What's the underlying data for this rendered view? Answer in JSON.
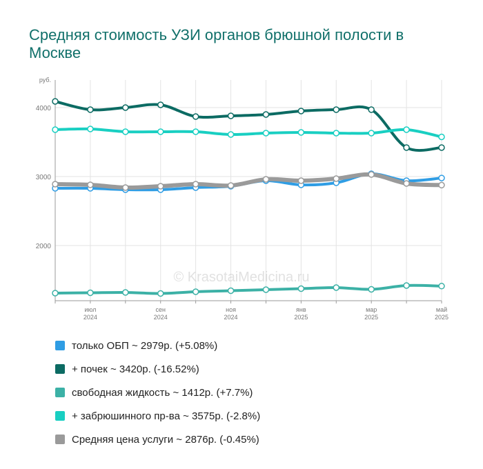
{
  "title": "Средняя стоимость УЗИ органов брюшной полости в Москве",
  "watermark": "© KrasotaiMedicina.ru",
  "chart_data": {
    "type": "line",
    "ylabel": "руб.",
    "ylim": [
      1200,
      4400
    ],
    "yticks": [
      2000,
      3000,
      4000
    ],
    "xlim": [
      0,
      11
    ],
    "x_tick_labels": [
      {
        "x": 1,
        "lines": [
          "июл",
          "2024"
        ]
      },
      {
        "x": 3,
        "lines": [
          "сен",
          "2024"
        ]
      },
      {
        "x": 5,
        "lines": [
          "ноя",
          "2024"
        ]
      },
      {
        "x": 7,
        "lines": [
          "янв",
          "2025"
        ]
      },
      {
        "x": 9,
        "lines": [
          "мар",
          "2025"
        ]
      },
      {
        "x": 11,
        "lines": [
          "май",
          "2025"
        ]
      }
    ],
    "grid": true,
    "legend_position": "bottom",
    "series": [
      {
        "name": "только ОБП",
        "color": "#2f9de4",
        "width": 4,
        "values": [
          2830,
          2830,
          2810,
          2810,
          2840,
          2860,
          2940,
          2880,
          2910,
          3040,
          2940,
          2979
        ]
      },
      {
        "name": "+ почек",
        "color": "#0c6b63",
        "width": 4,
        "values": [
          4090,
          3970,
          4000,
          4040,
          3870,
          3880,
          3900,
          3950,
          3970,
          3970,
          3420,
          3420
        ]
      },
      {
        "name": "свободная жидкость",
        "color": "#3cb1a6",
        "width": 4,
        "values": [
          1310,
          1315,
          1320,
          1305,
          1330,
          1345,
          1360,
          1375,
          1390,
          1365,
          1420,
          1412
        ]
      },
      {
        "name": "+ забрюшинного пр-ва",
        "color": "#19cfc2",
        "width": 4,
        "values": [
          3680,
          3690,
          3650,
          3650,
          3650,
          3610,
          3630,
          3640,
          3630,
          3630,
          3680,
          3575
        ]
      },
      {
        "name": "Средняя цена услуги",
        "color": "#9a9a9a",
        "width": 6,
        "values": [
          2890,
          2880,
          2840,
          2860,
          2890,
          2870,
          2960,
          2940,
          2970,
          3030,
          2900,
          2876
        ]
      }
    ]
  },
  "legend": [
    {
      "label": "только ОБП ~ 2979р. (+5.08%)",
      "color": "#2f9de4"
    },
    {
      "label": "+ почек ~ 3420р. (-16.52%)",
      "color": "#0c6b63"
    },
    {
      "label": "свободная жидкость ~ 1412р. (+7.7%)",
      "color": "#3cb1a6"
    },
    {
      "label": "+ забрюшинного пр-ва ~ 3575р. (-2.8%)",
      "color": "#19cfc2"
    },
    {
      "label": "Средняя цена услуги ~ 2876р. (-0.45%)",
      "color": "#9a9a9a"
    }
  ]
}
